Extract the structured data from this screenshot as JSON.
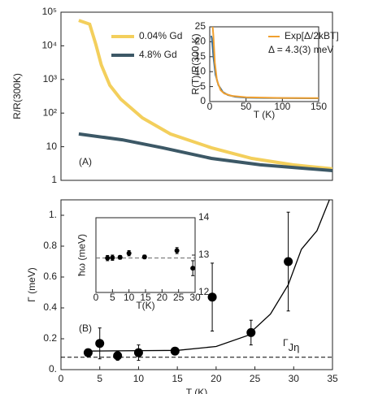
{
  "chart_data": [
    {
      "type": "line",
      "ylabel": "R/R(300K)",
      "panel_label": "(A)",
      "yscale": "log",
      "xlim": [
        0,
        35
      ],
      "ylim": [
        1,
        100000
      ],
      "yticks": [
        1,
        10,
        {
          "value": 100,
          "label": "10²"
        },
        {
          "value": 1000,
          "label": "10³"
        },
        {
          "value": 10000,
          "label": "10⁴"
        },
        {
          "value": 100000,
          "label": "10⁵"
        }
      ],
      "series": [
        {
          "name": "0.04% Gd",
          "color": "#f3cf5c",
          "x": [
            2.3,
            3.7,
            4.5,
            5.2,
            6.3,
            7.7,
            10.5,
            14.1,
            19.4,
            24.6,
            29.9,
            35
          ],
          "values": [
            57000,
            44000,
            11000,
            2700,
            670,
            260,
            72,
            24,
            9.3,
            4.5,
            2.9,
            2.2
          ]
        },
        {
          "name": "4.8% Gd",
          "color": "#3c5866",
          "x": [
            2.3,
            7.9,
            13.1,
            19.4,
            25.7,
            35
          ],
          "values": [
            24,
            16,
            9.3,
            4.5,
            2.9,
            1.95
          ]
        }
      ]
    },
    {
      "type": "line",
      "xlabel": "T (K)",
      "ylabel": "R(T)/R(300 K)",
      "annotation": "Δ = 4.3(3) meV",
      "xlim": [
        0,
        150
      ],
      "ylim": [
        0,
        25
      ],
      "xticks": [
        0,
        50,
        100,
        150
      ],
      "yticks": [
        0,
        5,
        10,
        15,
        20,
        25
      ],
      "series": [
        {
          "color": "#3a6f9a",
          "x": [
            2,
            3,
            5,
            8,
            12,
            18,
            25,
            35,
            50,
            75,
            100,
            150
          ],
          "values": [
            22,
            21,
            15,
            9,
            5.5,
            3.2,
            2.2,
            1.6,
            1.3,
            1.2,
            1.15,
            1.1
          ]
        },
        {
          "name": "Exp[Δ/2kBT]",
          "color": "#f0a030",
          "x": [
            4,
            5,
            7,
            10,
            15,
            20,
            30,
            50,
            100,
            150
          ],
          "values": [
            25,
            22,
            13,
            7,
            3.8,
            2.7,
            1.9,
            1.4,
            1.2,
            1.15
          ]
        }
      ]
    },
    {
      "type": "scatter",
      "xlabel": "T (K)",
      "ylabel": "Γ (meV)",
      "panel_label": "(B)",
      "xlim": [
        0,
        35
      ],
      "ylim": [
        0,
        1.1
      ],
      "xticks": [
        0,
        5,
        10,
        15,
        20,
        25,
        30,
        35
      ],
      "yticks": [
        {
          "value": 0,
          "label": "0."
        },
        0.2,
        0.4,
        0.6,
        0.8,
        {
          "value": 1,
          "label": "1."
        }
      ],
      "series": [
        {
          "color": "#000000",
          "x": [
            3.5,
            5,
            7.3,
            10,
            14.7,
            19.5,
            24.5,
            29.3
          ],
          "values": [
            0.11,
            0.17,
            0.09,
            0.11,
            0.12,
            0.47,
            0.24,
            0.7
          ],
          "errors": [
            0.02,
            0.1,
            0.03,
            0.05,
            0.02,
            0.22,
            0.08,
            0.32
          ]
        }
      ],
      "fit": {
        "x": [
          3,
          15,
          20,
          24,
          27,
          29.3,
          31,
          33,
          34.6
        ],
        "values": [
          0.12,
          0.125,
          0.15,
          0.22,
          0.36,
          0.55,
          0.78,
          0.9,
          1.1
        ]
      },
      "baseline": {
        "value": 0.08,
        "label": "Γ",
        "label_sub": "Jη"
      }
    },
    {
      "type": "scatter",
      "xlabel": "T(K)",
      "ylabel": "ħω (meV)",
      "y_axis_side": "right",
      "xlim": [
        0,
        30
      ],
      "ylim": [
        12,
        14
      ],
      "xticks": [
        0,
        5,
        10,
        15,
        20,
        25,
        30
      ],
      "yticks": [
        12,
        13,
        14
      ],
      "series": [
        {
          "color": "#000000",
          "x": [
            3.5,
            5,
            7.3,
            10,
            14.7,
            24.5,
            29.3
          ],
          "values": [
            12.92,
            12.93,
            12.94,
            13.05,
            12.95,
            13.12,
            12.65
          ],
          "errors": [
            0.07,
            0.07,
            0.05,
            0.07,
            0.05,
            0.08,
            0.2
          ]
        }
      ],
      "baseline": {
        "value": 12.92
      }
    }
  ]
}
